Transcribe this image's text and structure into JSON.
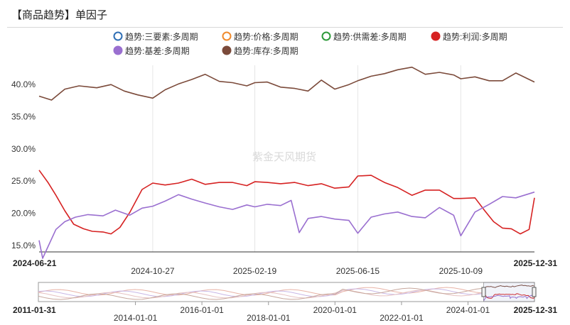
{
  "title": "【商品趋势】单因子",
  "watermark": "紫金天风期货",
  "chart_data": {
    "type": "line",
    "y_unit": "percent",
    "ylim": [
      14.0,
      43.0
    ],
    "yticks": [
      "40.0%",
      "35.0%",
      "30.0%",
      "25.0%",
      "20.0%",
      "15.0%"
    ],
    "ytick_values": [
      40,
      35,
      30,
      25,
      20,
      15
    ],
    "x_start": "2024-06-21",
    "x_end": "2025-12-31",
    "xticks": [
      "2024-10-27",
      "2025-02-19",
      "2025-06-15",
      "2025-10-09"
    ],
    "grid_x": true,
    "grid_y": false,
    "legend_position": "top",
    "legend": [
      {
        "name": "趋势:三要素:多周期",
        "color": "#2f6fb5",
        "hollow": true
      },
      {
        "name": "趋势:价格:多周期",
        "color": "#f08a2c",
        "hollow": true
      },
      {
        "name": "趋势:供需差:多周期",
        "color": "#2e9a3a",
        "hollow": true
      },
      {
        "name": "趋势:利润:多周期",
        "color": "#d62222",
        "hollow": false
      },
      {
        "name": "趋势:基差:多周期",
        "color": "#9a6fd0",
        "hollow": false
      },
      {
        "name": "趋势:库存:多周期",
        "color": "#7b4a3a",
        "hollow": false
      }
    ],
    "series": [
      {
        "name": "趋势:库存:多周期",
        "color": "#7b4a3a",
        "x": [
          "2024-06-21",
          "2024-07-05",
          "2024-07-20",
          "2024-08-05",
          "2024-08-25",
          "2024-09-10",
          "2024-09-25",
          "2024-10-10",
          "2024-10-27",
          "2024-11-10",
          "2024-11-25",
          "2024-12-10",
          "2024-12-25",
          "2025-01-10",
          "2025-01-25",
          "2025-02-10",
          "2025-02-19",
          "2025-03-05",
          "2025-03-20",
          "2025-04-05",
          "2025-04-20",
          "2025-05-05",
          "2025-05-20",
          "2025-06-05",
          "2025-06-15",
          "2025-06-30",
          "2025-07-15",
          "2025-07-30",
          "2025-08-15",
          "2025-08-30",
          "2025-09-15",
          "2025-10-01",
          "2025-10-09",
          "2025-10-25",
          "2025-11-10",
          "2025-11-25",
          "2025-12-10",
          "2025-12-31"
        ],
        "values": [
          38.2,
          37.6,
          39.3,
          39.8,
          39.5,
          40.0,
          39.0,
          38.4,
          37.9,
          39.2,
          40.1,
          40.8,
          41.6,
          40.5,
          40.3,
          39.8,
          40.3,
          40.4,
          39.6,
          39.4,
          39.0,
          40.7,
          39.3,
          40.0,
          40.6,
          41.3,
          41.7,
          42.3,
          42.7,
          41.6,
          41.9,
          41.5,
          40.9,
          41.2,
          40.6,
          40.6,
          41.8,
          40.4
        ]
      },
      {
        "name": "趋势:利润:多周期",
        "color": "#d62222",
        "x": [
          "2024-06-21",
          "2024-07-01",
          "2024-07-10",
          "2024-07-20",
          "2024-07-30",
          "2024-08-10",
          "2024-08-20",
          "2024-09-01",
          "2024-09-10",
          "2024-09-20",
          "2024-10-01",
          "2024-10-15",
          "2024-10-27",
          "2024-11-10",
          "2024-11-25",
          "2024-12-10",
          "2024-12-25",
          "2025-01-10",
          "2025-01-25",
          "2025-02-10",
          "2025-02-19",
          "2025-03-05",
          "2025-03-20",
          "2025-04-05",
          "2025-04-20",
          "2025-05-05",
          "2025-05-20",
          "2025-06-05",
          "2025-06-15",
          "2025-06-30",
          "2025-07-15",
          "2025-07-30",
          "2025-08-15",
          "2025-08-30",
          "2025-09-15",
          "2025-10-01",
          "2025-10-09",
          "2025-10-25",
          "2025-11-05",
          "2025-11-15",
          "2025-11-25",
          "2025-12-05",
          "2025-12-15",
          "2025-12-25",
          "2025-12-31"
        ],
        "values": [
          26.7,
          24.8,
          22.8,
          20.4,
          18.3,
          17.6,
          17.2,
          17.1,
          16.8,
          17.8,
          20.1,
          23.7,
          24.7,
          24.4,
          24.7,
          25.3,
          24.5,
          24.8,
          24.8,
          24.3,
          24.9,
          24.8,
          24.6,
          24.8,
          24.3,
          24.6,
          23.9,
          24.1,
          25.8,
          25.9,
          24.8,
          24.0,
          22.8,
          23.6,
          23.6,
          22.3,
          22.3,
          22.4,
          20.4,
          18.7,
          17.7,
          17.6,
          16.8,
          17.5,
          22.4
        ]
      },
      {
        "name": "趋势:基差:多周期",
        "color": "#9a6fd0",
        "x": [
          "2024-06-21",
          "2024-06-25",
          "2024-06-30",
          "2024-07-10",
          "2024-07-20",
          "2024-08-01",
          "2024-08-15",
          "2024-09-01",
          "2024-09-15",
          "2024-10-01",
          "2024-10-15",
          "2024-10-27",
          "2024-11-10",
          "2024-11-25",
          "2024-12-10",
          "2024-12-25",
          "2025-01-10",
          "2025-01-25",
          "2025-02-10",
          "2025-02-19",
          "2025-03-05",
          "2025-03-20",
          "2025-04-01",
          "2025-04-10",
          "2025-04-20",
          "2025-05-05",
          "2025-05-20",
          "2025-06-05",
          "2025-06-15",
          "2025-06-30",
          "2025-07-15",
          "2025-07-30",
          "2025-08-15",
          "2025-08-30",
          "2025-09-15",
          "2025-10-01",
          "2025-10-09",
          "2025-10-25",
          "2025-11-10",
          "2025-11-25",
          "2025-12-10",
          "2025-12-31"
        ],
        "values": [
          15.8,
          13.0,
          14.5,
          17.5,
          18.7,
          19.4,
          19.8,
          19.6,
          20.5,
          19.7,
          20.8,
          21.1,
          21.9,
          22.9,
          22.2,
          21.6,
          21.0,
          20.6,
          21.3,
          21.0,
          21.4,
          21.2,
          22.0,
          17.0,
          19.2,
          19.5,
          19.1,
          18.9,
          16.9,
          19.4,
          19.9,
          20.2,
          19.5,
          19.3,
          20.9,
          19.7,
          16.5,
          20.2,
          21.4,
          22.6,
          22.4,
          23.3
        ]
      }
    ]
  },
  "navigator": {
    "start_label": "2011-01-31",
    "end_label": "2025-12-31",
    "ticks": [
      "2014-01-01",
      "2016-01-01",
      "2018-01-01",
      "2020-01-01",
      "2022-01-01",
      "2024-01-01"
    ],
    "selection_start": "2024-06-21",
    "selection_end": "2025-12-31"
  }
}
